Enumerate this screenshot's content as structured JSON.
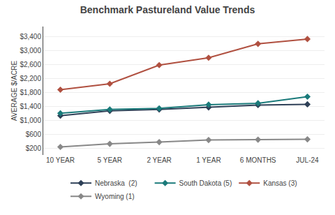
{
  "chart_data": {
    "type": "line",
    "title": "Benchmark Pastureland Value Trends",
    "ylabel": "AVERAGE $/ACRE",
    "categories": [
      "10 YEAR",
      "5 YEAR",
      "2 YEAR",
      "1 YEAR",
      "6 MONTHS",
      "JUL-24"
    ],
    "series": [
      {
        "name": "Nebraska  (2)",
        "color": "#2e4057",
        "marker": "diamond",
        "values": [
          1130,
          1270,
          1310,
          1370,
          1440,
          1460
        ]
      },
      {
        "name": "South Dakota (5)",
        "color": "#1a7a7a",
        "marker": "diamond",
        "values": [
          1200,
          1310,
          1340,
          1450,
          1490,
          1680
        ]
      },
      {
        "name": "Kansas (3)",
        "color": "#b05040",
        "marker": "diamond",
        "values": [
          1880,
          2050,
          2590,
          2800,
          3200,
          3340
        ]
      },
      {
        "name": "Wyoming (1)",
        "color": "#888888",
        "marker": "diamond",
        "values": [
          230,
          320,
          370,
          430,
          440,
          450
        ]
      }
    ],
    "ylim": [
      0,
      3700
    ],
    "yticks": [
      {
        "value": 200,
        "label": "$200"
      },
      {
        "value": 600,
        "label": "$600"
      },
      {
        "value": 1000,
        "label": "$1,000"
      },
      {
        "value": 1400,
        "label": "$1,400"
      },
      {
        "value": 1800,
        "label": "$1,800"
      },
      {
        "value": 2200,
        "label": "$2,200"
      },
      {
        "value": 2600,
        "label": "$2,600"
      },
      {
        "value": 3000,
        "label": "$3,000"
      },
      {
        "value": 3400,
        "label": "$3,400"
      }
    ],
    "grid": true,
    "legend": "bottom"
  }
}
